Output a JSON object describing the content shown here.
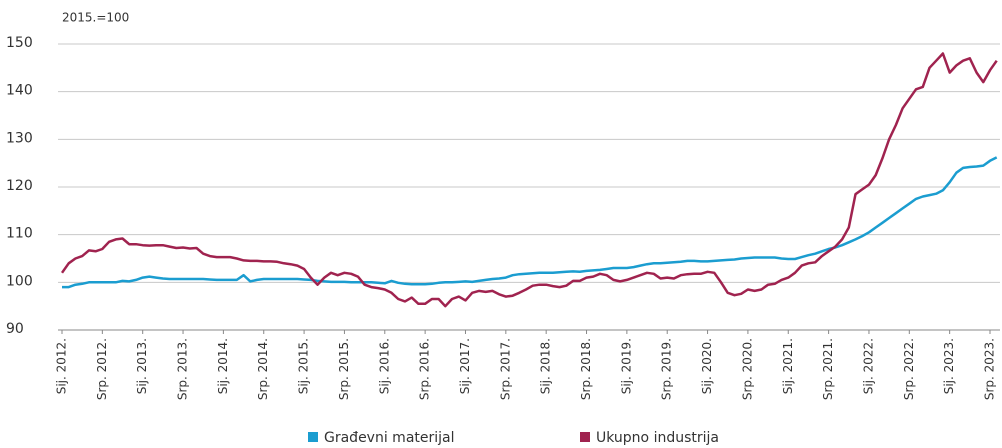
{
  "chart_data": {
    "type": "line",
    "ylabel": "2015.=100",
    "categories": [
      "Sij. 2012.",
      null,
      null,
      null,
      null,
      null,
      "Srp. 2012.",
      null,
      null,
      null,
      null,
      null,
      "Sij. 2013.",
      null,
      null,
      null,
      null,
      null,
      "Srp. 2013.",
      null,
      null,
      null,
      null,
      null,
      "Sij. 2014.",
      null,
      null,
      null,
      null,
      null,
      "Srp. 2014.",
      null,
      null,
      null,
      null,
      null,
      "Sij. 2015.",
      null,
      null,
      null,
      null,
      null,
      "Srp. 2015.",
      null,
      null,
      null,
      null,
      null,
      "Sij. 2016.",
      null,
      null,
      null,
      null,
      null,
      "Srp. 2016.",
      null,
      null,
      null,
      null,
      null,
      "Sij. 2017.",
      null,
      null,
      null,
      null,
      null,
      "Srp. 2017.",
      null,
      null,
      null,
      null,
      null,
      "Sij. 2018.",
      null,
      null,
      null,
      null,
      null,
      "Srp. 2018.",
      null,
      null,
      null,
      null,
      null,
      "Sij. 2019.",
      null,
      null,
      null,
      null,
      null,
      "Srp. 2019.",
      null,
      null,
      null,
      null,
      null,
      "Sij. 2020.",
      null,
      null,
      null,
      null,
      null,
      "Srp. 2020.",
      null,
      null,
      null,
      null,
      null,
      "Sij. 2021.",
      null,
      null,
      null,
      null,
      null,
      "Srp. 2021.",
      null,
      null,
      null,
      null,
      null,
      "Sij. 2022.",
      null,
      null,
      null,
      null,
      null,
      "Srp. 2022.",
      null,
      null,
      null,
      null,
      null,
      "Sij. 2023.",
      null,
      null,
      null,
      null,
      null,
      "Srp. 2023.",
      null
    ],
    "series": [
      {
        "name": "Građevni materijal",
        "color": "#1b9dd0",
        "values": [
          99,
          99,
          99.5,
          99.7,
          100,
          100,
          100,
          100,
          100,
          100.3,
          100.2,
          100.5,
          101,
          101.2,
          101,
          100.8,
          100.7,
          100.7,
          100.7,
          100.7,
          100.7,
          100.7,
          100.6,
          100.5,
          100.5,
          100.5,
          100.5,
          101.5,
          100.2,
          100.5,
          100.7,
          100.7,
          100.7,
          100.7,
          100.7,
          100.7,
          100.6,
          100.5,
          100.3,
          100.2,
          100.1,
          100.1,
          100.1,
          100,
          100,
          100,
          100,
          99.9,
          99.8,
          100.3,
          99.9,
          99.7,
          99.6,
          99.6,
          99.6,
          99.7,
          99.9,
          100,
          100,
          100.1,
          100.2,
          100.1,
          100.3,
          100.5,
          100.7,
          100.8,
          101,
          101.5,
          101.7,
          101.8,
          101.9,
          102,
          102,
          102,
          102.1,
          102.2,
          102.3,
          102.2,
          102.4,
          102.5,
          102.6,
          102.8,
          103,
          103,
          103,
          103.2,
          103.5,
          103.8,
          104,
          104,
          104.1,
          104.2,
          104.3,
          104.5,
          104.5,
          104.4,
          104.4,
          104.5,
          104.6,
          104.7,
          104.8,
          105,
          105.1,
          105.2,
          105.2,
          105.2,
          105.2,
          105,
          104.9,
          104.9,
          105.3,
          105.7,
          106,
          106.5,
          107,
          107.3,
          107.8,
          108.4,
          109,
          109.7,
          110.5,
          111.5,
          112.5,
          113.5,
          114.5,
          115.5,
          116.5,
          117.5,
          118,
          118.3,
          118.6,
          119.3,
          121,
          123,
          124,
          124.2,
          124.3,
          124.5,
          125.5,
          126.2
        ]
      },
      {
        "name": "Ukupno industrija",
        "color": "#a0234f",
        "values": [
          102,
          104,
          105,
          105.5,
          106.7,
          106.5,
          107,
          108.5,
          109,
          109.2,
          108,
          108,
          107.8,
          107.7,
          107.8,
          107.8,
          107.5,
          107.2,
          107.3,
          107.1,
          107.2,
          106,
          105.5,
          105.3,
          105.3,
          105.3,
          105,
          104.6,
          104.5,
          104.5,
          104.4,
          104.4,
          104.3,
          104,
          103.8,
          103.5,
          102.8,
          101,
          99.5,
          101,
          102,
          101.5,
          102,
          101.8,
          101.2,
          99.5,
          99,
          98.8,
          98.5,
          97.8,
          96.5,
          96,
          96.8,
          95.5,
          95.5,
          96.5,
          96.5,
          95,
          96.5,
          97,
          96.2,
          97.8,
          98.2,
          98,
          98.2,
          97.5,
          97,
          97.2,
          97.8,
          98.5,
          99.3,
          99.5,
          99.5,
          99.2,
          99,
          99.3,
          100.3,
          100.3,
          101,
          101.2,
          101.8,
          101.5,
          100.5,
          100.2,
          100.5,
          101,
          101.5,
          102,
          101.8,
          100.8,
          101,
          100.8,
          101.5,
          101.7,
          101.8,
          101.8,
          102.2,
          102,
          100,
          97.8,
          97.3,
          97.6,
          98.5,
          98.2,
          98.5,
          99.5,
          99.7,
          100.5,
          101,
          102,
          103.5,
          104,
          104.2,
          105.5,
          106.5,
          107.5,
          109,
          111.5,
          118.5,
          119.5,
          120.5,
          122.5,
          126,
          130,
          133,
          136.5,
          138.5,
          140.5,
          141,
          145,
          146.5,
          148,
          144,
          145.5,
          146.5,
          147,
          144,
          142,
          144.5,
          146.5
        ]
      }
    ],
    "ylim": [
      90,
      150
    ],
    "yticks": [
      90,
      100,
      110,
      120,
      130,
      140,
      150
    ],
    "grid": true,
    "legend": "bottom"
  }
}
